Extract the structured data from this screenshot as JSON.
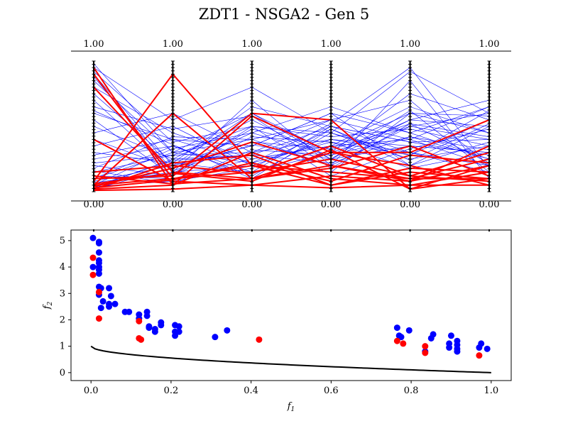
{
  "title": "ZDT1 - NSGA2 - Gen 5",
  "colors": {
    "population": "#0000ff",
    "highlight": "#ff0000",
    "front": "#000000",
    "axis": "#000000"
  },
  "chart_data": [
    {
      "type": "line",
      "variant": "parallel-coordinates",
      "axes_count": 6,
      "axis_top_labels": [
        "1.00",
        "1.00",
        "1.00",
        "1.00",
        "1.00",
        "1.00"
      ],
      "axis_bottom_labels": [
        "0.00",
        "0.00",
        "0.00",
        "0.00",
        "0.00",
        "0.00"
      ],
      "ylim": [
        0,
        1
      ],
      "series": [
        {
          "color": "blue",
          "lines": [
            [
              0.95,
              0.55,
              0.8,
              0.45,
              0.92,
              0.6
            ],
            [
              0.9,
              0.2,
              0.6,
              0.3,
              0.5,
              0.4
            ],
            [
              0.85,
              0.3,
              0.4,
              0.55,
              0.7,
              0.2
            ],
            [
              0.8,
              0.45,
              0.25,
              0.35,
              0.4,
              0.65
            ],
            [
              0.7,
              0.15,
              0.7,
              0.2,
              0.85,
              0.1
            ],
            [
              0.6,
              0.4,
              0.35,
              0.6,
              0.2,
              0.5
            ],
            [
              0.5,
              0.25,
              0.55,
              0.25,
              0.55,
              0.7
            ],
            [
              0.45,
              0.6,
              0.3,
              0.4,
              0.35,
              0.3
            ],
            [
              0.4,
              0.18,
              0.45,
              0.65,
              0.45,
              0.25
            ],
            [
              0.35,
              0.5,
              0.2,
              0.15,
              0.6,
              0.45
            ],
            [
              0.3,
              0.22,
              0.65,
              0.5,
              0.3,
              0.15
            ],
            [
              0.25,
              0.35,
              0.15,
              0.3,
              0.75,
              0.55
            ],
            [
              0.2,
              0.12,
              0.5,
              0.45,
              0.25,
              0.35
            ],
            [
              0.18,
              0.42,
              0.4,
              0.2,
              0.5,
              0.6
            ],
            [
              0.15,
              0.28,
              0.3,
              0.55,
              0.4,
              0.2
            ],
            [
              0.12,
              0.1,
              0.25,
              0.35,
              0.65,
              0.45
            ],
            [
              0.1,
              0.3,
              0.6,
              0.25,
              0.35,
              0.3
            ],
            [
              0.08,
              0.2,
              0.35,
              0.6,
              0.45,
              0.65
            ],
            [
              0.06,
              0.15,
              0.2,
              0.4,
              0.3,
              0.2
            ],
            [
              0.05,
              0.33,
              0.45,
              0.28,
              0.55,
              0.5
            ],
            [
              0.04,
              0.08,
              0.18,
              0.48,
              0.2,
              0.38
            ],
            [
              0.03,
              0.25,
              0.28,
              0.22,
              0.42,
              0.25
            ],
            [
              0.02,
              0.18,
              0.38,
              0.33,
              0.6,
              0.58
            ],
            [
              0.92,
              0.38,
              0.5,
              0.42,
              0.48,
              0.35
            ],
            [
              0.75,
              0.22,
              0.15,
              0.5,
              0.38,
              0.28
            ],
            [
              0.65,
              0.48,
              0.58,
              0.18,
              0.52,
              0.42
            ],
            [
              0.55,
              0.12,
              0.42,
              0.38,
              0.28,
              0.62
            ],
            [
              0.28,
              0.4,
              0.22,
              0.52,
              0.95,
              0.18
            ],
            [
              0.22,
              0.28,
              0.5,
              0.12,
              0.33,
              0.48
            ],
            [
              0.16,
              0.06,
              0.32,
              0.28,
              0.42,
              0.32
            ],
            [
              0.1,
              0.35,
              0.12,
              0.45,
              0.28,
              0.55
            ],
            [
              0.07,
              0.14,
              0.48,
              0.32,
              0.52,
              0.22
            ],
            [
              0.04,
              0.24,
              0.28,
              0.5,
              0.38,
              0.4
            ],
            [
              0.98,
              0.3,
              0.22,
              0.38,
              0.18,
              0.3
            ],
            [
              0.88,
              0.16,
              0.36,
              0.25,
              0.62,
              0.15
            ],
            [
              0.62,
              0.36,
              0.1,
              0.48,
              0.24,
              0.52
            ]
          ]
        },
        {
          "color": "red",
          "lines": [
            [
              0.95,
              0.05,
              0.3,
              0.1,
              0.05,
              0.15
            ],
            [
              0.9,
              0.1,
              0.2,
              0.15,
              0.1,
              0.1
            ],
            [
              0.8,
              0.15,
              0.1,
              0.3,
              0.2,
              0.05
            ],
            [
              0.4,
              0.08,
              0.05,
              0.12,
              0.08,
              0.2
            ],
            [
              0.08,
              0.9,
              0.2,
              0.05,
              0.15,
              0.1
            ],
            [
              0.05,
              0.6,
              0.1,
              0.2,
              0.1,
              0.25
            ],
            [
              0.1,
              0.12,
              0.6,
              0.55,
              0.02,
              0.2
            ],
            [
              0.02,
              0.05,
              0.58,
              0.3,
              0.3,
              0.55
            ],
            [
              0.04,
              0.18,
              0.38,
              0.2,
              0.08,
              0.35
            ],
            [
              0.06,
              0.14,
              0.08,
              0.32,
              0.02,
              0.1
            ],
            [
              0.03,
              0.09,
              0.22,
              0.08,
              0.28,
              0.22
            ],
            [
              0.15,
              0.2,
              0.14,
              0.35,
              0.12,
              0.3
            ],
            [
              0.01,
              0.02,
              0.05,
              0.03,
              0.05,
              0.05
            ],
            [
              0.02,
              0.22,
              0.28,
              0.05,
              0.18,
              0.15
            ],
            [
              0.05,
              0.1,
              0.15,
              0.25,
              0.12,
              0.08
            ],
            [
              0.12,
              0.06,
              0.1,
              0.18,
              0.35,
              0.12
            ]
          ]
        }
      ]
    },
    {
      "type": "scatter",
      "xlabel": "f1",
      "ylabel": "f2",
      "xlim": [
        -0.05,
        1.05
      ],
      "ylim": [
        -0.3,
        5.4
      ],
      "xticks": [
        "0.0",
        "0.2",
        "0.4",
        "0.6",
        "0.8",
        "1.0"
      ],
      "yticks": [
        "0",
        "1",
        "2",
        "3",
        "4",
        "5"
      ],
      "series": [
        {
          "color": "blue",
          "points": [
            [
              0.005,
              5.1
            ],
            [
              0.005,
              4.0
            ],
            [
              0.02,
              4.95
            ],
            [
              0.02,
              4.9
            ],
            [
              0.02,
              4.55
            ],
            [
              0.02,
              4.25
            ],
            [
              0.02,
              4.15
            ],
            [
              0.02,
              4.0
            ],
            [
              0.02,
              3.9
            ],
            [
              0.02,
              3.75
            ],
            [
              0.02,
              3.25
            ],
            [
              0.025,
              3.2
            ],
            [
              0.02,
              2.95
            ],
            [
              0.03,
              2.7
            ],
            [
              0.025,
              2.45
            ],
            [
              0.045,
              3.2
            ],
            [
              0.05,
              2.9
            ],
            [
              0.045,
              2.6
            ],
            [
              0.045,
              2.5
            ],
            [
              0.06,
              2.6
            ],
            [
              0.085,
              2.3
            ],
            [
              0.095,
              2.3
            ],
            [
              0.12,
              2.2
            ],
            [
              0.12,
              2.05
            ],
            [
              0.14,
              2.3
            ],
            [
              0.14,
              2.15
            ],
            [
              0.145,
              1.75
            ],
            [
              0.145,
              1.7
            ],
            [
              0.16,
              1.65
            ],
            [
              0.16,
              1.55
            ],
            [
              0.175,
              1.9
            ],
            [
              0.175,
              1.8
            ],
            [
              0.21,
              1.8
            ],
            [
              0.21,
              1.55
            ],
            [
              0.21,
              1.4
            ],
            [
              0.22,
              1.75
            ],
            [
              0.22,
              1.55
            ],
            [
              0.31,
              1.35
            ],
            [
              0.34,
              1.6
            ],
            [
              0.765,
              1.7
            ],
            [
              0.77,
              1.4
            ],
            [
              0.775,
              1.35
            ],
            [
              0.795,
              1.6
            ],
            [
              0.835,
              0.8
            ],
            [
              0.85,
              1.3
            ],
            [
              0.855,
              1.45
            ],
            [
              0.895,
              1.1
            ],
            [
              0.895,
              0.95
            ],
            [
              0.9,
              1.4
            ],
            [
              0.915,
              1.2
            ],
            [
              0.915,
              1.05
            ],
            [
              0.915,
              0.9
            ],
            [
              0.915,
              0.8
            ],
            [
              0.97,
              0.95
            ],
            [
              0.975,
              1.1
            ],
            [
              0.99,
              0.9
            ]
          ]
        },
        {
          "color": "red",
          "points": [
            [
              0.005,
              4.35
            ],
            [
              0.005,
              3.7
            ],
            [
              0.02,
              3.05
            ],
            [
              0.02,
              2.05
            ],
            [
              0.12,
              1.95
            ],
            [
              0.12,
              1.3
            ],
            [
              0.125,
              1.25
            ],
            [
              0.42,
              1.25
            ],
            [
              0.765,
              1.2
            ],
            [
              0.78,
              1.1
            ],
            [
              0.835,
              1.0
            ],
            [
              0.835,
              0.75
            ],
            [
              0.97,
              0.65
            ]
          ]
        }
      ],
      "front": {
        "type": "line",
        "formula": "1 - sqrt(x)",
        "x_range": [
          0.0,
          1.0
        ],
        "color": "black"
      }
    }
  ]
}
